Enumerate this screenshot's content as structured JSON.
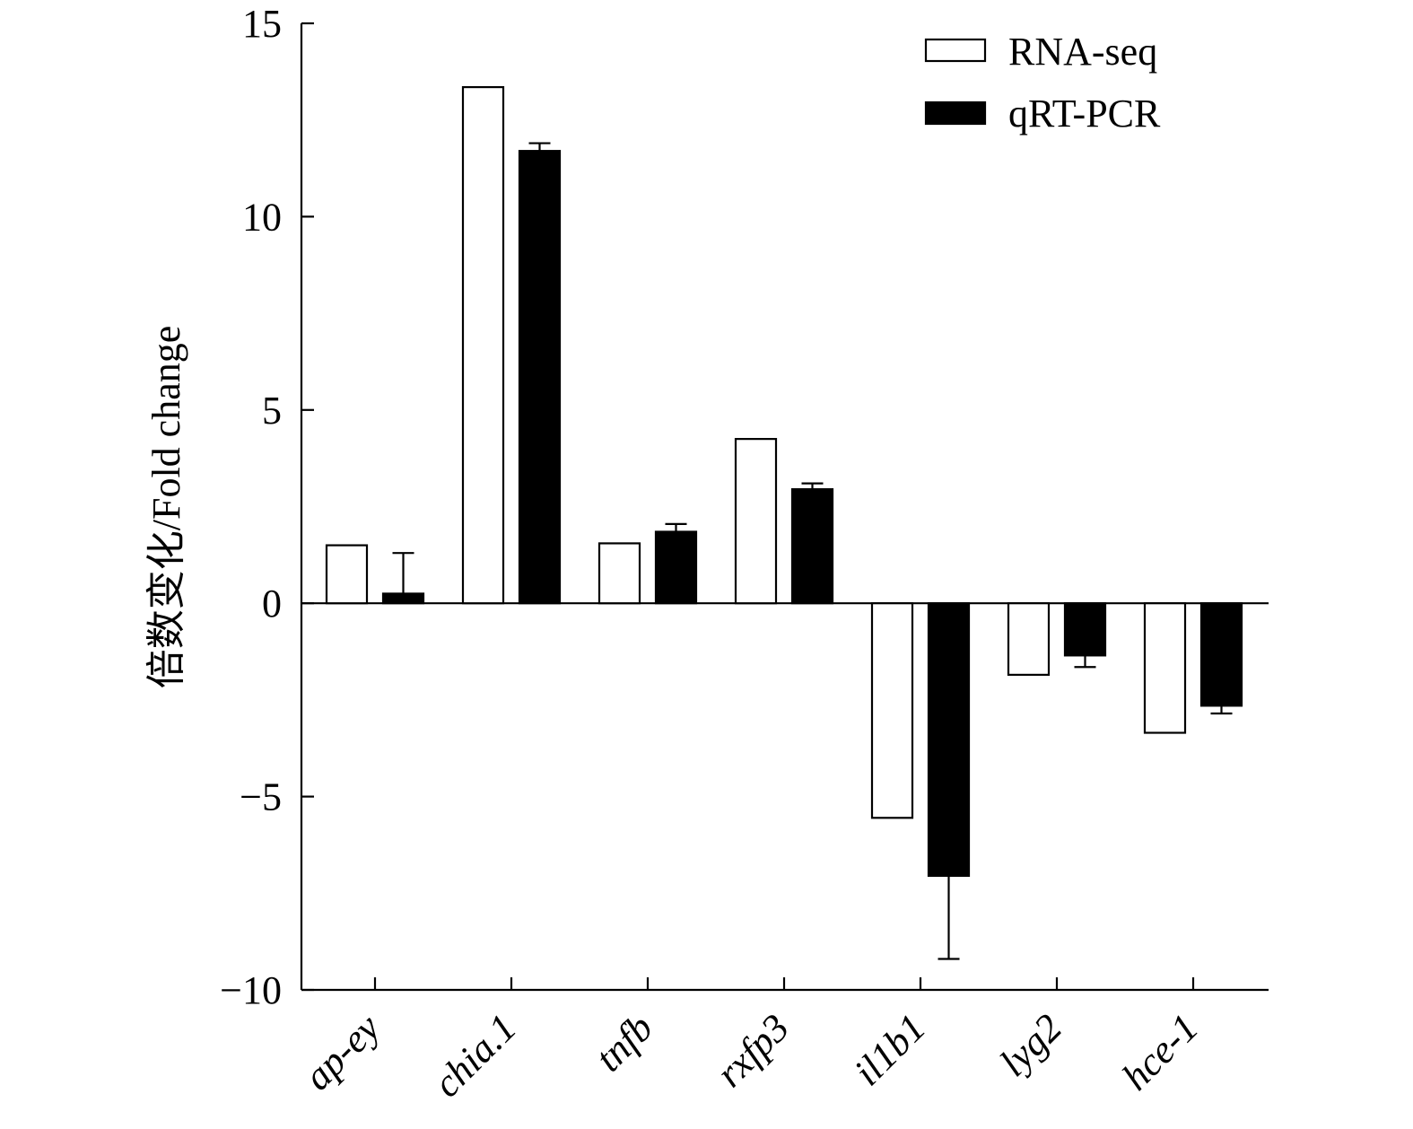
{
  "chart_data": {
    "type": "bar",
    "title": "",
    "xlabel": "",
    "ylabel": "倍数变化/Fold change",
    "ylim": [
      -10,
      15
    ],
    "yticks": [
      15,
      10,
      5,
      0,
      -5,
      -10
    ],
    "ytick_labels": [
      "15",
      "10",
      "5",
      "0",
      "−5",
      "−10"
    ],
    "grid": false,
    "legend_position": "top-right",
    "categories": [
      "ap-ey",
      "chia.1",
      "tnfb",
      "rxfp3",
      "il1b1",
      "lyg2",
      "hce-1"
    ],
    "series": [
      {
        "name": "RNA-seq",
        "fill": "#ffffff",
        "stroke": "#000000",
        "values": [
          1.5,
          13.35,
          1.55,
          4.25,
          -5.55,
          -1.85,
          -3.35
        ],
        "errors": [
          0,
          0,
          0,
          0,
          0,
          0,
          0
        ]
      },
      {
        "name": "qRT-PCR",
        "fill": "#000000",
        "stroke": "#000000",
        "values": [
          0.25,
          11.7,
          1.85,
          2.95,
          -7.05,
          -1.35,
          -2.65
        ],
        "errors": [
          1.05,
          0.2,
          0.2,
          0.15,
          2.15,
          0.3,
          0.2
        ]
      }
    ]
  }
}
